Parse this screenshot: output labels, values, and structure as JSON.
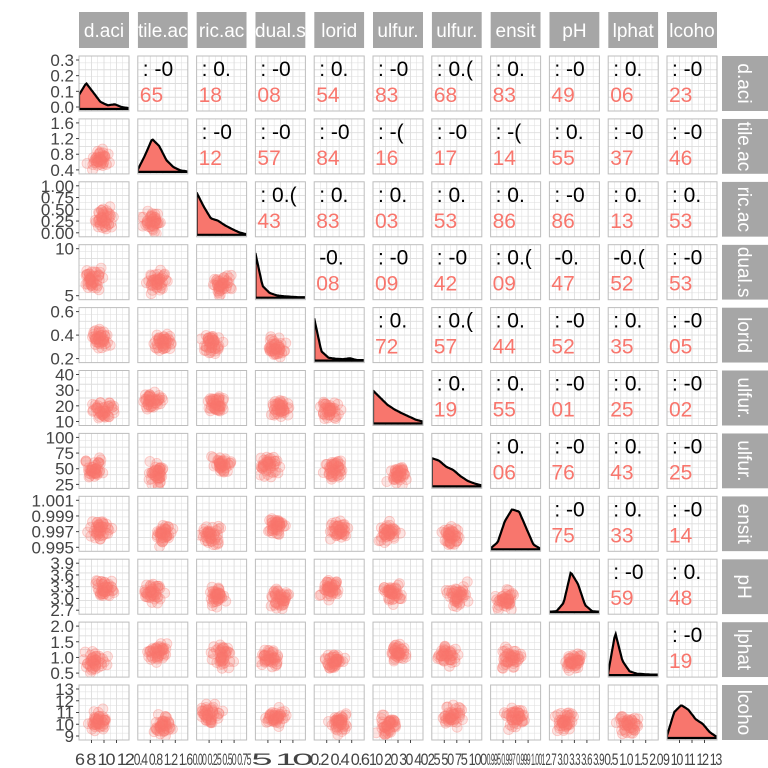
{
  "chart_data": {
    "type": "scatter",
    "variables": [
      "fixed.acidity",
      "volatile.acidity",
      "citric.acid",
      "residual.sugar",
      "chlorides",
      "free.sulfur.dioxide",
      "total.sulfur.dioxide",
      "density",
      "pH",
      "sulphates",
      "alcohol"
    ],
    "column_strip_labels": [
      "d.aci",
      "tile.ac",
      "ric.ac",
      "dual.s",
      "lorid",
      "ulfur.",
      "ulfur.",
      "ensit",
      "pH",
      "lphat",
      "lcoho"
    ],
    "row_strip_labels": [
      "d.aci",
      "tile.ac",
      "ric.ac",
      "dual.s",
      "lorid",
      "ulfur.",
      "ulfur.",
      "ensit",
      "pH",
      "lphat",
      "lcoho"
    ],
    "y_tick_labels": [
      [
        "0.3",
        "0.2",
        "0.1",
        "0.0"
      ],
      [
        "1.6",
        "1.2",
        "0.8",
        "0.4"
      ],
      [
        "1.00",
        "0.75",
        "0.50",
        "0.25",
        "0.00"
      ],
      [
        "10",
        "5"
      ],
      [
        "0.6",
        "0.4",
        "0.2"
      ],
      [
        "40",
        "30",
        "20",
        "10"
      ],
      [
        "100",
        "75",
        "50",
        "25"
      ],
      [
        "1.001",
        "0.999",
        "0.997",
        "0.995"
      ],
      [
        "3.9",
        "3.6",
        "3.3",
        "3.0",
        "2.7"
      ],
      [
        "2.0",
        "1.5",
        "1.0",
        "0.5"
      ],
      [
        "13",
        "12",
        "11",
        "10",
        "9"
      ]
    ],
    "x_tick_labels": [
      "6 8 10 12",
      "0.4 0.8 1.2 1.6",
      "0.00 0.25 0.50 0.75",
      "5 10",
      "0.2 0.4 0.6",
      "10 20 30 40",
      "25 50 75 100",
      "0.995 0.997 0.999 1.001",
      "2.7 3.0 3.3 3.6 3.9",
      "0.5 1.0 1.5 2.0",
      "9 10 11 12 13"
    ],
    "upper_black_text": [
      [
        null,
        ": -0",
        ": 0.",
        ": -0",
        ": 0.",
        ": -0",
        ": 0.(",
        ": 0.",
        ": -0",
        ": 0.",
        ": -0"
      ],
      [
        null,
        null,
        ": -0",
        ": -0",
        ": -0",
        ": -(",
        ": -0",
        ": -(",
        ": 0.",
        ": -0",
        ": -0"
      ],
      [
        null,
        null,
        null,
        ": 0.(",
        ": 0.",
        ": 0.",
        ": 0.",
        ": 0.",
        ": -0",
        ": 0.",
        ": 0."
      ],
      [
        null,
        null,
        null,
        null,
        "-0.",
        ": -0",
        ": -0",
        ": 0.(",
        "-0.",
        "-0.(",
        ": -0"
      ],
      [
        null,
        null,
        null,
        null,
        null,
        ": 0.",
        ": 0.(",
        ": 0.",
        ": -0",
        ": 0.",
        ": -0"
      ],
      [
        null,
        null,
        null,
        null,
        null,
        null,
        ": 0.",
        ": 0.",
        ": -0",
        ": 0.",
        ": -0"
      ],
      [
        null,
        null,
        null,
        null,
        null,
        null,
        null,
        ": 0.",
        ": -0",
        ": 0.",
        ": -0"
      ],
      [
        null,
        null,
        null,
        null,
        null,
        null,
        null,
        null,
        ": -0",
        ": 0.",
        ": -0"
      ],
      [
        null,
        null,
        null,
        null,
        null,
        null,
        null,
        null,
        null,
        ": -0",
        ": 0."
      ],
      [
        null,
        null,
        null,
        null,
        null,
        null,
        null,
        null,
        null,
        null,
        ": -0"
      ]
    ],
    "upper_red_text": [
      [
        null,
        "65",
        "18",
        "08",
        "54",
        "83",
        "68",
        "83",
        "49",
        "06",
        "23"
      ],
      [
        null,
        null,
        "12",
        "57",
        "84",
        "16",
        "17",
        "14",
        "55",
        "37",
        "46"
      ],
      [
        null,
        null,
        null,
        "43",
        "83",
        "03",
        "53",
        "86",
        "86",
        "13",
        "53"
      ],
      [
        null,
        null,
        null,
        null,
        "08",
        "09",
        "42",
        "09",
        "47",
        "52",
        "53"
      ],
      [
        null,
        null,
        null,
        null,
        null,
        "72",
        "57",
        "44",
        "52",
        "35",
        "05"
      ],
      [
        null,
        null,
        null,
        null,
        null,
        null,
        "19",
        "55",
        "01",
        "25",
        "02"
      ],
      [
        null,
        null,
        null,
        null,
        null,
        null,
        null,
        "06",
        "76",
        "43",
        "25"
      ],
      [
        null,
        null,
        null,
        null,
        null,
        null,
        null,
        null,
        "75",
        "33",
        "14"
      ],
      [
        null,
        null,
        null,
        null,
        null,
        null,
        null,
        null,
        null,
        "59",
        "48"
      ],
      [
        null,
        null,
        null,
        null,
        null,
        null,
        null,
        null,
        null,
        null,
        "19"
      ]
    ],
    "grid": true,
    "colors": {
      "point": "#f8766d",
      "density_fill": "#f8766d",
      "strip": "#a6a6a6",
      "panel_border": "#bdbdbd",
      "grid": "#dddddd",
      "text_dark": "#000000",
      "tick_text": "#444444"
    }
  }
}
